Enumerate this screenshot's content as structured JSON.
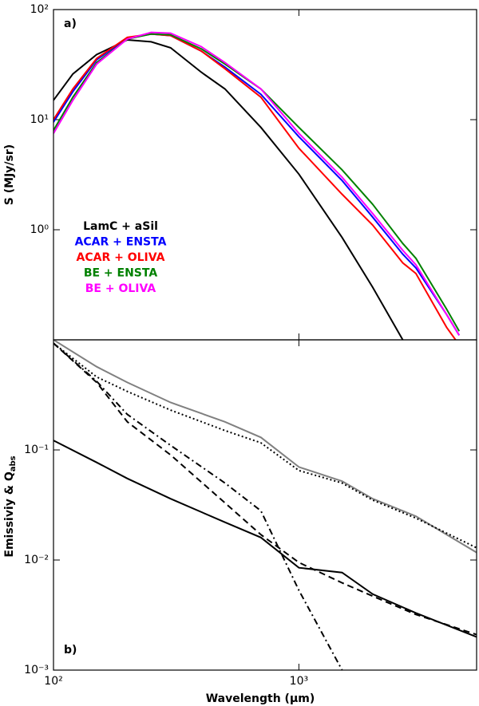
{
  "chart_data": [
    {
      "type": "line",
      "panel_label": "a)",
      "ylabel": "S (MJy/sr)",
      "xscale": "log",
      "yscale": "log",
      "xlim": [
        100,
        5300
      ],
      "ylim": [
        0.1,
        100
      ],
      "yticks": [
        {
          "value": 1,
          "label": "10⁰"
        },
        {
          "value": 10,
          "label": "10¹"
        },
        {
          "value": 100,
          "label": "10²"
        }
      ],
      "x": [
        100,
        120,
        150,
        200,
        250,
        300,
        400,
        500,
        700,
        1000,
        1500,
        2000,
        2650,
        3000,
        4000,
        4500
      ],
      "series": [
        {
          "name": "LamC + aSil",
          "color": "#000000",
          "values": [
            15,
            26,
            39,
            53,
            51,
            45,
            27,
            19,
            8.5,
            3.2,
            0.85,
            0.3,
            0.1,
            null,
            null,
            null
          ]
        },
        {
          "name": "ACAR + ENSTA",
          "color": "#0000ff",
          "values": [
            9.5,
            18,
            35,
            55,
            60,
            58,
            42,
            30,
            17,
            7,
            2.8,
            1.3,
            0.6,
            0.45,
            0.17,
            0.11
          ]
        },
        {
          "name": "ACAR + OLIVA",
          "color": "#ff0000",
          "values": [
            10,
            19,
            36,
            56,
            60,
            58,
            42,
            29,
            16,
            5.5,
            2.1,
            1.1,
            0.5,
            0.4,
            0.13,
            0.09
          ]
        },
        {
          "name": "BE + ENSTA",
          "color": "#008000",
          "values": [
            8,
            16,
            33,
            54,
            60,
            59,
            44,
            32,
            19,
            8.5,
            3.5,
            1.7,
            0.75,
            0.55,
            0.19,
            0.12
          ]
        },
        {
          "name": "BE + OLIVA",
          "color": "#ff00ff",
          "values": [
            7.5,
            15,
            32,
            54,
            62,
            61,
            46,
            33,
            19,
            7.5,
            3,
            1.4,
            0.65,
            0.48,
            0.17,
            0.11
          ]
        }
      ]
    },
    {
      "type": "line",
      "panel_label": "b)",
      "xlabel": "Wavelength (μm)",
      "ylabel": "Emissiviy & Q",
      "ylabel_sub": "abs",
      "xscale": "log",
      "yscale": "log",
      "xlim": [
        100,
        5300
      ],
      "ylim": [
        0.001,
        1
      ],
      "xticks": [
        {
          "value": 100,
          "label": "10²"
        },
        {
          "value": 1000,
          "label": "10³"
        }
      ],
      "yticks": [
        {
          "value": 0.001,
          "label": "10⁻³"
        },
        {
          "value": 0.01,
          "label": "10⁻²"
        },
        {
          "value": 0.1,
          "label": "10⁻¹"
        }
      ],
      "x": [
        100,
        150,
        200,
        300,
        500,
        700,
        1000,
        1500,
        2000,
        3000,
        5300
      ],
      "series": [
        {
          "color": "#808080",
          "dash": "solid",
          "values": [
            1.0,
            0.57,
            0.41,
            0.27,
            0.18,
            0.13,
            0.07,
            0.052,
            0.036,
            0.025,
            0.0117
          ]
        },
        {
          "color": "#000000",
          "dash": "dotted",
          "values": [
            0.93,
            0.46,
            0.34,
            0.23,
            0.15,
            0.116,
            0.065,
            0.05,
            0.035,
            0.024,
            0.0129
          ]
        },
        {
          "color": "#000000",
          "dash": "solid",
          "values": [
            0.122,
            0.077,
            0.055,
            0.036,
            0.022,
            0.016,
            0.0085,
            0.0077,
            0.0049,
            0.0033,
            0.002
          ]
        },
        {
          "color": "#000000",
          "dash": "dashed",
          "values": [
            0.93,
            0.41,
            0.18,
            0.09,
            0.033,
            0.017,
            0.0095,
            0.0062,
            0.0047,
            0.0032,
            0.0021
          ]
        },
        {
          "color": "#000000",
          "dash": "dashdot",
          "values": [
            0.93,
            0.42,
            0.21,
            0.11,
            0.05,
            0.028,
            0.0053,
            0.001,
            null,
            null,
            null
          ]
        }
      ]
    }
  ]
}
